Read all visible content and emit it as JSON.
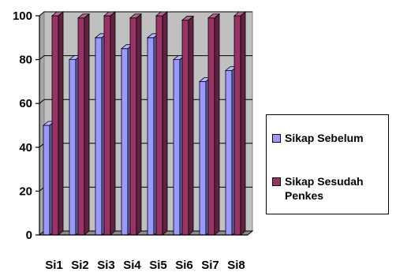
{
  "chart_data": {
    "type": "bar",
    "categories": [
      "Si1",
      "Si2",
      "Si3",
      "Si4",
      "Si5",
      "Si6",
      "Si7",
      "Si8"
    ],
    "series": [
      {
        "name": "Sikap Sebelum",
        "values": [
          50,
          80,
          90,
          85,
          90,
          80,
          70,
          75
        ],
        "color": "#9999ff"
      },
      {
        "name": "Sikap Sesudah Penkes",
        "values": [
          100,
          99,
          100,
          99,
          100,
          98,
          99,
          100
        ],
        "color": "#993366"
      }
    ],
    "title": "",
    "xlabel": "",
    "ylabel": "",
    "ylim": [
      0,
      100
    ],
    "yticks": [
      "0",
      "20",
      "40",
      "60",
      "80",
      "100"
    ],
    "grid": true,
    "legend_position": "right",
    "plot_background": "#c0c0c0",
    "style": "3d-column"
  }
}
